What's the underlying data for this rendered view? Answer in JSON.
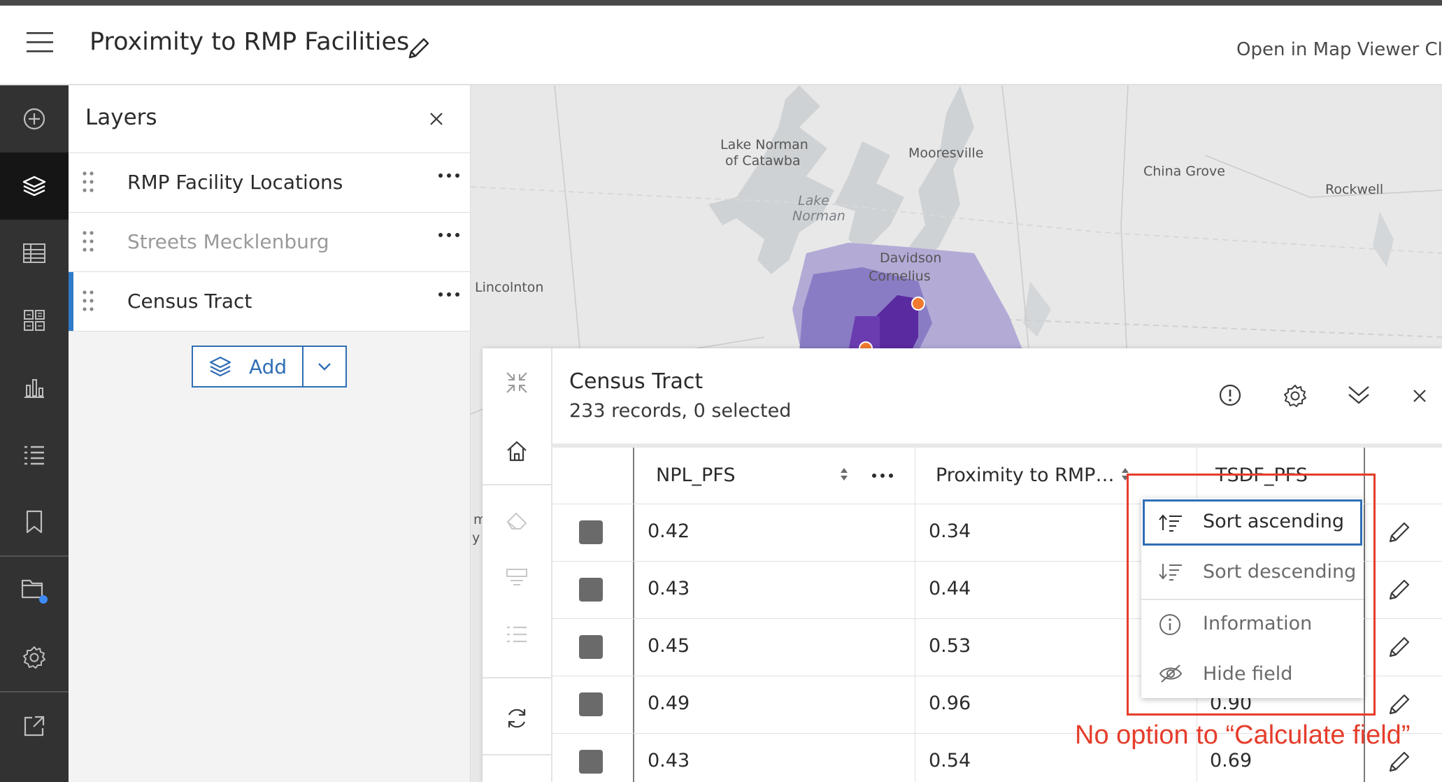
{
  "header": {
    "title": "Proximity to RMP Facilities",
    "open_map_viewer": "Open in Map Viewer Cl"
  },
  "rail": {
    "items": [
      "add-icon",
      "layers-icon",
      "table-icon",
      "widgets-icon",
      "chart-icon",
      "legend-icon",
      "bookmark-icon",
      "folder-icon",
      "settings-icon",
      "share-icon"
    ],
    "active": "layers-icon"
  },
  "layers_panel": {
    "title": "Layers",
    "items": [
      {
        "label": "RMP Facility Locations",
        "visible": true,
        "selected": false
      },
      {
        "label": "Streets Mecklenburg",
        "visible": false,
        "selected": false
      },
      {
        "label": "Census Tract",
        "visible": true,
        "selected": true
      }
    ],
    "add_label": "Add"
  },
  "map": {
    "labels": [
      "Lake Norman",
      "of Catawba",
      "Mooresville",
      "China Grove",
      "Rockwell",
      "Lake",
      "Norman",
      "Davidson",
      "Cornelius",
      "Lincolnton",
      "m",
      "y"
    ]
  },
  "table_panel": {
    "title": "Census Tract",
    "subtitle": "233 records, 0 selected",
    "columns": [
      "NPL_PFS",
      "Proximity to RMP…",
      "TSDF_PFS"
    ],
    "rows": [
      {
        "npl": "0.42",
        "rmp": "0.34",
        "tsdf": ""
      },
      {
        "npl": "0.43",
        "rmp": "0.44",
        "tsdf": ""
      },
      {
        "npl": "0.45",
        "rmp": "0.53",
        "tsdf": ""
      },
      {
        "npl": "0.49",
        "rmp": "0.96",
        "tsdf": "0.90"
      },
      {
        "npl": "0.43",
        "rmp": "0.54",
        "tsdf": "0.69"
      }
    ]
  },
  "context_menu": {
    "items": [
      {
        "label": "Sort ascending",
        "icon": "sort-ascending-icon"
      },
      {
        "label": "Sort descending",
        "icon": "sort-descending-icon"
      },
      {
        "label": "Information",
        "icon": "information-icon"
      },
      {
        "label": "Hide field",
        "icon": "hide-icon"
      }
    ]
  },
  "annotation": {
    "text": "No option to “Calculate field”",
    "color": "#e53d2b"
  },
  "colors": {
    "accent": "#2f6eb5",
    "rail": "#323232",
    "tract_light": "#b3aad6",
    "tract_mid": "#8a7cc4",
    "tract_dark": "#5a2aa0"
  }
}
